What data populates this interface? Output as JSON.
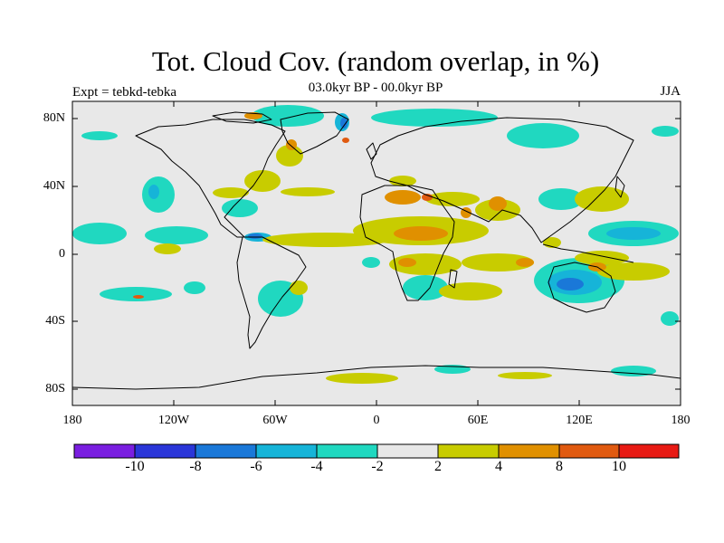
{
  "title": "Tot. Cloud Cov. (random overlap, in %)",
  "subtitle": "03.0kyr BP - 00.0kyr BP",
  "experiment": "Expt = tebkd-tebka",
  "season": "JJA",
  "lat_labels": [
    "80N",
    "40N",
    "0",
    "40S",
    "80S"
  ],
  "lon_labels": [
    "180",
    "120W",
    "60W",
    "0",
    "60E",
    "120E",
    "180"
  ],
  "colorbar": {
    "colors": [
      "#7a1ee0",
      "#2a36d8",
      "#1a78d8",
      "#16b4d8",
      "#20d8c0",
      "#e8e8e8",
      "#c8cc00",
      "#e09000",
      "#e05a10",
      "#e81a14"
    ],
    "labels": [
      "-10",
      "-8",
      "-6",
      "-4",
      "-2",
      "2",
      "4",
      "8",
      "10"
    ]
  },
  "colors": {
    "land_background": "#e8e8e8",
    "coastline": "#000000"
  }
}
